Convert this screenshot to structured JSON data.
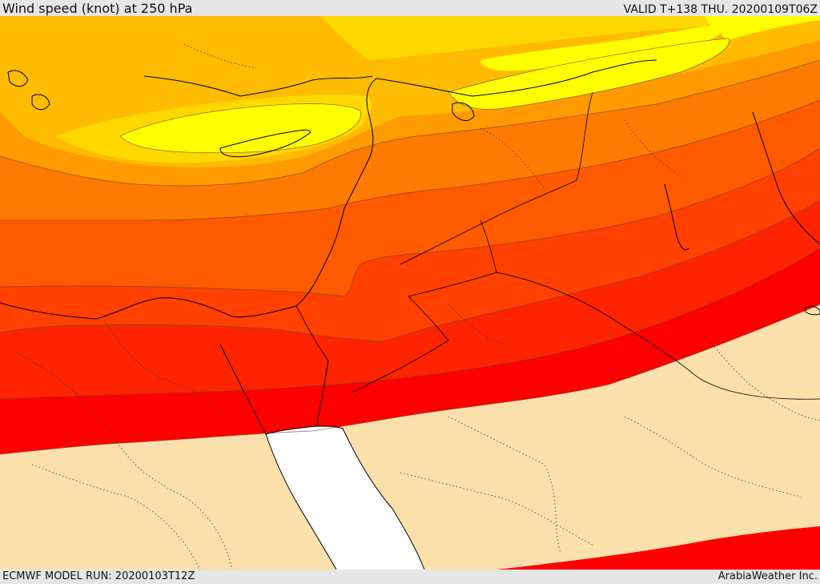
{
  "header": {
    "title": "Wind speed (knot) at 250 hPa",
    "valid": "VALID T+138 THU. 20200109T06Z"
  },
  "footer": {
    "model_run": "ECMWF MODEL RUN: 20200103T12Z",
    "provider": "ArabiaWeather Inc."
  },
  "map": {
    "field": "wind speed at 250 hPa",
    "colors": {
      "calm": "#fce0ab",
      "sea": "#ffffff",
      "band_red": "#ff0000",
      "band_red_orange": "#ff2400",
      "band_orange_red": "#ff4000",
      "band_dark_orange": "#ff5a00",
      "band_orange": "#ff7a00",
      "band_light_orange": "#ff9a00",
      "band_amber": "#ffbb00",
      "band_gold": "#ffd800",
      "band_yellow": "#ffff00",
      "border_line": "#000000"
    }
  }
}
